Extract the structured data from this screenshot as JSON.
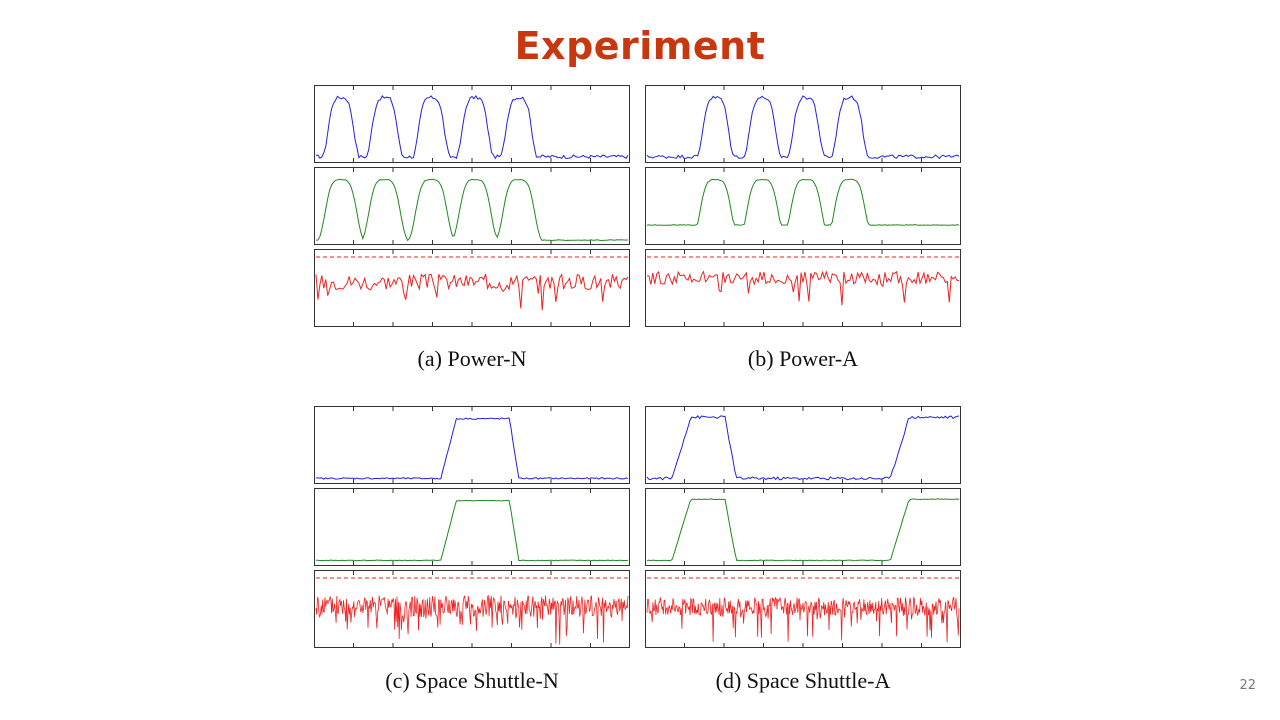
{
  "slide": {
    "title": "Experiment",
    "page_number": "22"
  },
  "panels": [
    {
      "id": "a",
      "caption": "(a)  Power-N",
      "rows": [
        {
          "color": "#2222dd"
        },
        {
          "color": "#228822"
        },
        {
          "color": "#ee2222",
          "threshold_line": true
        }
      ]
    },
    {
      "id": "b",
      "caption": "(b)  Power-A",
      "rows": [
        {
          "color": "#2222dd"
        },
        {
          "color": "#228822"
        },
        {
          "color": "#ee2222",
          "threshold_line": true
        }
      ]
    },
    {
      "id": "c",
      "caption": "(c)  Space Shuttle-N",
      "rows": [
        {
          "color": "#2222dd"
        },
        {
          "color": "#228822"
        },
        {
          "color": "#ee2222",
          "threshold_line": true
        }
      ]
    },
    {
      "id": "d",
      "caption": "(d)  Space Shuttle-A",
      "rows": [
        {
          "color": "#2222dd"
        },
        {
          "color": "#228822"
        },
        {
          "color": "#ee2222",
          "threshold_line": true
        }
      ]
    }
  ]
}
